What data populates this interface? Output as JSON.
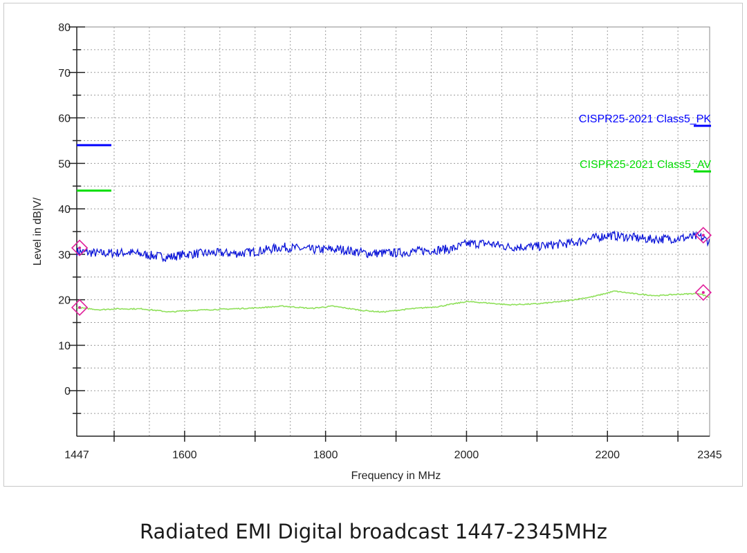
{
  "caption": "Radiated EMI Digital broadcast 1447-2345MHz",
  "chart_data": {
    "type": "line",
    "xlabel": "Frequency in MHz",
    "ylabel": "Level in dB|V/",
    "xlim": [
      1447,
      2345
    ],
    "ylim": [
      -10,
      80
    ],
    "x_ticks": [
      1447,
      1600,
      1800,
      2000,
      2200,
      2345
    ],
    "y_ticks": [
      0,
      10,
      20,
      30,
      40,
      50,
      60,
      70,
      80
    ],
    "grid": true,
    "legend_position": "right",
    "limit_lines": [
      {
        "name": "CISPR25-2021 Class5_PK",
        "value": 54,
        "color": "#0000ff"
      },
      {
        "name": "CISPR25-2021 Class5_AV",
        "value": 44,
        "color": "#00dd00"
      }
    ],
    "series": [
      {
        "color": "#0a14d8",
        "x": [
          1447,
          1480,
          1520,
          1560,
          1580,
          1600,
          1640,
          1680,
          1700,
          1740,
          1780,
          1820,
          1860,
          1900,
          1940,
          1980,
          2000,
          2030,
          2060,
          2100,
          2150,
          2200,
          2230,
          2260,
          2300,
          2330,
          2345
        ],
        "values": [
          30.6,
          30.2,
          30.4,
          29.6,
          29.4,
          30.0,
          30.3,
          30.2,
          30.6,
          31.6,
          31.0,
          31.1,
          30.2,
          30.3,
          30.8,
          31.2,
          32.3,
          32.4,
          31.6,
          31.7,
          32.5,
          34.2,
          33.8,
          33.3,
          33.5,
          33.9,
          32.8
        ]
      },
      {
        "color": "#8fe05a",
        "x": [
          1447,
          1480,
          1500,
          1540,
          1580,
          1600,
          1650,
          1700,
          1740,
          1780,
          1810,
          1850,
          1880,
          1920,
          1960,
          2000,
          2030,
          2060,
          2100,
          2140,
          2180,
          2210,
          2240,
          2270,
          2300,
          2330,
          2345
        ],
        "values": [
          18.3,
          17.8,
          18.0,
          18.0,
          17.3,
          17.6,
          17.9,
          18.2,
          18.6,
          18.1,
          18.6,
          17.7,
          17.3,
          18.0,
          18.5,
          19.6,
          19.3,
          18.9,
          19.1,
          19.7,
          20.7,
          21.9,
          21.3,
          20.9,
          21.2,
          21.4,
          20.5
        ]
      }
    ],
    "markers": [
      {
        "x": 1451,
        "y": 31.4
      },
      {
        "x": 2336,
        "y": 34.2
      },
      {
        "x": 1451,
        "y": 18.3
      },
      {
        "x": 2336,
        "y": 21.6
      }
    ]
  }
}
